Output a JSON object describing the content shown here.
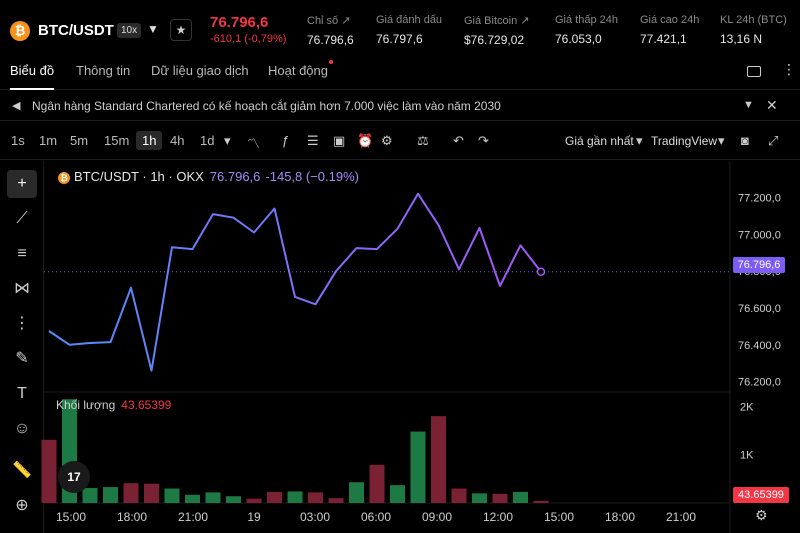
{
  "header": {
    "coin_glyph": "₿",
    "pair": "BTC/USDT",
    "leverage": "10x",
    "last_price": "76.796,6",
    "change": "-610,1 (-0,79%)",
    "stats": [
      {
        "label": "Chỉ số ↗",
        "value": "76.796,6"
      },
      {
        "label": "Giá đánh dấu",
        "value": "76.797,6"
      },
      {
        "label": "Giá Bitcoin ↗",
        "value": "$76.729,02"
      },
      {
        "label": "Giá thấp 24h",
        "value": "76.053,0"
      },
      {
        "label": "Giá cao 24h",
        "value": "77.421,1"
      },
      {
        "label": "KL 24h (BTC)",
        "value": "13,16 N"
      }
    ]
  },
  "tabs": [
    "Biểu đồ",
    "Thông tin",
    "Dữ liệu giao dịch",
    "Hoạt động"
  ],
  "news": {
    "text": "Ngân hàng Standard Chartered có kế hoạch cắt giảm hơn 7.000 việc làm vào năm 2030"
  },
  "toolbar": {
    "intervals": [
      "1s",
      "1m",
      "5m",
      "15m",
      "1h",
      "4h",
      "1d"
    ],
    "active_interval": "1h",
    "price_type": "Giá gần nhất",
    "chart_type": "TradingView"
  },
  "legend": {
    "coin_glyph": "₿",
    "symbol": "BTC/USDT · 1h · OKX",
    "price": "76.796,6",
    "change": "-145,8 (−0.19%)"
  },
  "volume": {
    "label": "Khối lượng",
    "value": "43.65399"
  },
  "tv_logo": "17",
  "colors": {
    "up": "#1e7a45",
    "down": "#7a2234",
    "line_start": "#4f8ff7",
    "line_end": "#a855f7",
    "badge": "#7c5cf5",
    "negative": "#f23645"
  },
  "chart_data": {
    "type": "line",
    "price_axis_ticks": [
      "77.200,0",
      "77.000,0",
      "76.800,0",
      "76.600,0",
      "76.400,0",
      "76.200,0"
    ],
    "price_ylim": [
      76144,
      77360
    ],
    "current_price": 76796.6,
    "current_price_label": "76.796,6",
    "volume_axis_ticks": [
      "2K",
      "1K"
    ],
    "volume_ylim": [
      0,
      2300
    ],
    "current_volume_label": "43.65399",
    "time_labels": [
      "15:00",
      "18:00",
      "21:00",
      "19",
      "03:00",
      "06:00",
      "09:00",
      "12:00",
      "15:00",
      "18:00",
      "21:00"
    ],
    "prices": [
      76475,
      76400,
      76410,
      76415,
      76710,
      76260,
      76930,
      76920,
      77110,
      77090,
      77010,
      77140,
      76660,
      76620,
      76800,
      76925,
      76920,
      77030,
      77220,
      77050,
      76810,
      77035,
      76720,
      76940,
      76796.6
    ],
    "volumes": [
      1310,
      2150,
      310,
      330,
      410,
      400,
      300,
      170,
      220,
      140,
      90,
      230,
      240,
      220,
      100,
      430,
      790,
      370,
      1480,
      1800,
      300,
      200,
      190,
      230,
      44
    ],
    "volume_direction": [
      "down",
      "up",
      "up",
      "up",
      "down",
      "down",
      "up",
      "up",
      "up",
      "up",
      "down",
      "down",
      "up",
      "down",
      "down",
      "up",
      "down",
      "up",
      "up",
      "down",
      "down",
      "up",
      "down",
      "up",
      "down"
    ]
  }
}
